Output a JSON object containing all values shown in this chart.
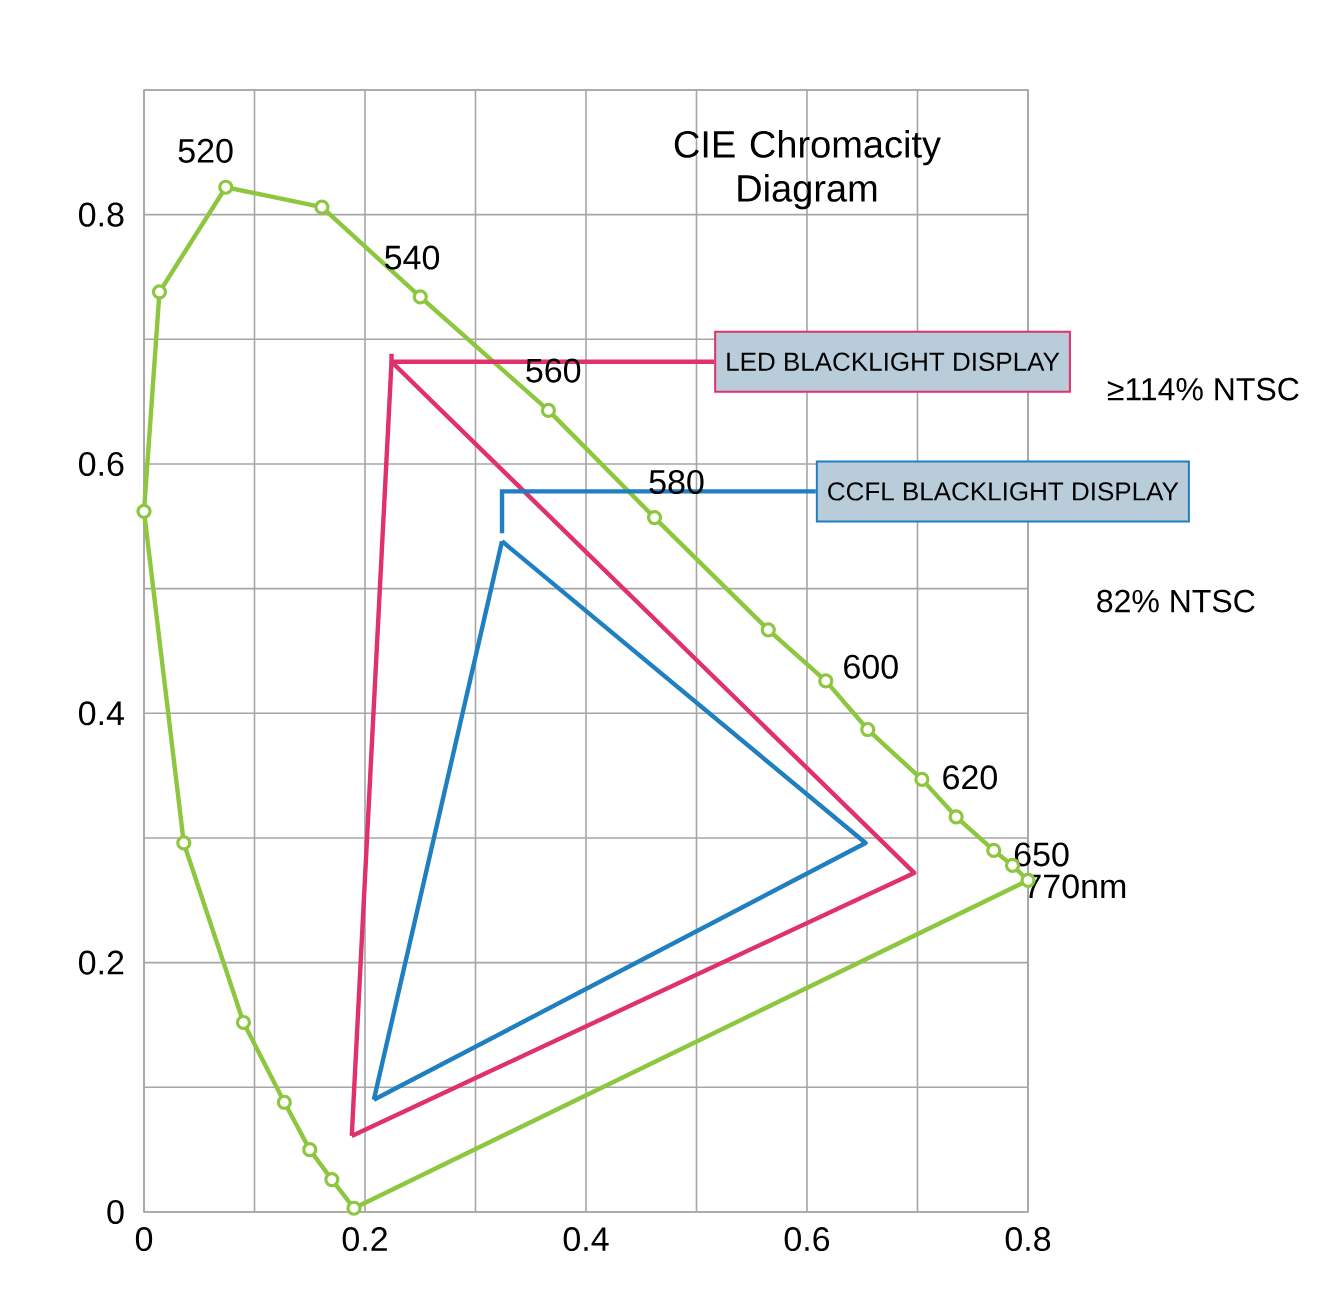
{
  "chart_data": {
    "type": "line",
    "title": "CIE Chromacity Diagram",
    "xlim": [
      0,
      0.8
    ],
    "ylim": [
      0,
      0.9
    ],
    "xticks": [
      0,
      {
        "value": 0.1,
        "label": null
      },
      0.2,
      {
        "value": 0.3,
        "label": null
      },
      0.4,
      {
        "value": 0.5,
        "label": null
      },
      0.6,
      {
        "value": 0.7,
        "label": null
      },
      0.8
    ],
    "yticks": [
      0,
      {
        "value": 0.1,
        "label": null
      },
      0.2,
      {
        "value": 0.3,
        "label": null
      },
      0.4,
      {
        "value": 0.5,
        "label": null
      },
      0.6,
      {
        "value": 0.7,
        "label": null
      },
      0.8,
      {
        "value": 0.9,
        "label": null
      }
    ],
    "grid": true,
    "marker": "circle",
    "series": [
      {
        "color": "#8dc63f",
        "x": [
          0.19,
          0.17,
          0.15,
          0.127,
          0.09,
          0.036,
          0.0,
          0.014,
          0.074,
          0.161,
          0.25,
          0.366,
          0.462,
          0.565,
          0.617,
          0.655,
          0.704,
          0.735,
          0.769,
          0.786,
          0.8
        ],
        "values": [
          0.003,
          0.026,
          0.05,
          0.088,
          0.152,
          0.296,
          0.562,
          0.738,
          0.822,
          0.806,
          0.734,
          0.643,
          0.557,
          0.467,
          0.426,
          0.387,
          0.347,
          0.317,
          0.29,
          0.278,
          0.266
        ]
      },
      {
        "color": "#8dc63f",
        "marker": "none",
        "x": [
          0.8,
          0.19
        ],
        "values": [
          0.266,
          0.003
        ]
      },
      {
        "name": "LED BLACKLIGHT DISPLAY",
        "color": "#e0306e",
        "marker": "none",
        "x": [
          0.224,
          0.697,
          0.188
        ],
        "values": [
          0.682,
          0.272,
          0.061
        ]
      },
      {
        "color": "#e0306e",
        "marker": "none",
        "x": [
          0.188,
          0.224
        ],
        "values": [
          0.061,
          0.682
        ]
      },
      {
        "name": "CCFL BLACKLIGHT DISPLAY",
        "color": "#1f7fc0",
        "marker": "none",
        "x": [
          0.324,
          0.653,
          0.208
        ],
        "values": [
          0.538,
          0.296,
          0.09
        ]
      },
      {
        "color": "#1f7fc0",
        "marker": "none",
        "x": [
          0.208,
          0.324
        ],
        "values": [
          0.09,
          0.538
        ]
      }
    ],
    "annotations": [
      "≥114% NTSC",
      "82% NTSC",
      {
        "text": "520",
        "x": 0.074,
        "y": 0.822
      },
      {
        "text": "540",
        "x": 0.25,
        "y": 0.734
      },
      {
        "text": "560",
        "x": 0.366,
        "y": 0.643
      },
      {
        "text": "580",
        "x": 0.462,
        "y": 0.557
      },
      {
        "text": "600",
        "x": 0.617,
        "y": 0.426
      },
      {
        "text": "620",
        "x": 0.704,
        "y": 0.347
      },
      {
        "text": "650",
        "x": 0.769,
        "y": 0.29
      },
      {
        "text": "770nm",
        "x": 0.8,
        "y": 0.266
      }
    ]
  }
}
